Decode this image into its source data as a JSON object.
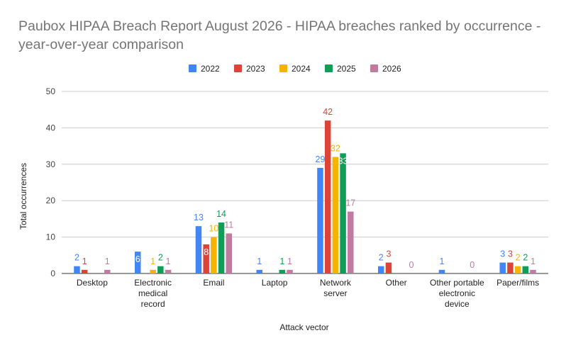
{
  "chart_data": {
    "type": "bar",
    "title": "Paubox HIPAA Breach Report August 2026 - HIPAA breaches ranked by occurrence - year-over-year comparison",
    "xlabel": "Attack vector",
    "ylabel": "Total occurrences",
    "ylim": [
      0,
      50
    ],
    "yticks": [
      "0",
      "10",
      "20",
      "30",
      "40",
      "50"
    ],
    "grid": true,
    "legend_position": "top",
    "categories": [
      [
        "Desktop"
      ],
      [
        "Electronic",
        "medical",
        "record"
      ],
      [
        "Email"
      ],
      [
        "Laptop"
      ],
      [
        "Network",
        "server"
      ],
      [
        "Other"
      ],
      [
        "Other portable",
        "electronic",
        "device"
      ],
      [
        "Paper/films"
      ]
    ],
    "series": [
      {
        "name": "2022",
        "color": "#4285f4",
        "values": [
          2,
          6,
          13,
          1,
          29,
          2,
          1,
          3
        ]
      },
      {
        "name": "2023",
        "color": "#db4437",
        "values": [
          1,
          null,
          8,
          null,
          42,
          3,
          null,
          3
        ]
      },
      {
        "name": "2024",
        "color": "#f4b400",
        "values": [
          null,
          1,
          10,
          null,
          32,
          null,
          null,
          2
        ]
      },
      {
        "name": "2025",
        "color": "#0f9d58",
        "values": [
          null,
          2,
          14,
          1,
          33,
          null,
          null,
          2
        ]
      },
      {
        "name": "2026",
        "color": "#c27ba0",
        "values": [
          1,
          1,
          11,
          1,
          17,
          0,
          0,
          1
        ]
      }
    ]
  }
}
